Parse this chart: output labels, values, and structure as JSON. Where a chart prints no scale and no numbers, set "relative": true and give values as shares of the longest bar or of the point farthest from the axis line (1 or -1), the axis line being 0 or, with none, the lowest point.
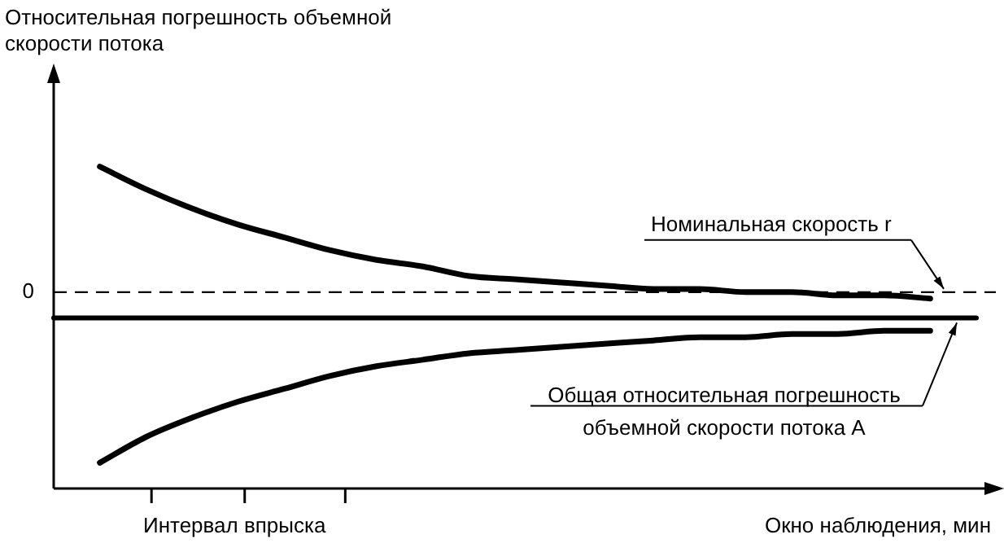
{
  "chart_data": {
    "type": "line",
    "relative": true,
    "xlabel": "Окно наблюдения, мин",
    "categories": [
      null,
      null,
      null,
      null,
      null,
      null,
      null,
      null,
      null,
      null,
      null,
      null,
      null,
      null,
      null,
      null,
      null,
      null,
      null,
      null,
      null
    ],
    "series": [
      {
        "color": "#000000",
        "values": [
          null,
          1,
          0.93,
          0.87,
          0.82,
          0.78,
          0.74,
          0.71,
          0.69,
          0.66,
          0.65,
          0.64,
          0.63,
          0.62,
          0.62,
          0.61,
          0.61,
          0.6,
          0.6,
          0.59,
          null
        ]
      },
      {
        "color": "#000000",
        "values": [
          null,
          0.08,
          0.16,
          0.22,
          0.27,
          0.31,
          0.35,
          0.38,
          0.4,
          0.42,
          0.43,
          0.44,
          0.45,
          0.46,
          0.47,
          0.47,
          0.48,
          0.48,
          0.49,
          0.49,
          null
        ]
      },
      {
        "name": "Общая относительная погрешность объемной скорости потока A",
        "color": "#000000",
        "values": [
          0.53,
          0.53,
          0.53,
          0.53,
          0.53,
          0.53,
          0.53,
          0.53,
          0.53,
          0.53,
          0.53,
          0.53,
          0.53,
          0.53,
          0.53,
          0.53,
          0.53,
          0.53,
          0.53,
          0.53,
          0.53
        ]
      }
    ],
    "ref_lines": [
      {
        "axis": "y",
        "value": 0.61,
        "label": "Номинальная скорость r",
        "line_style": "dashed",
        "color": "#000000"
      }
    ],
    "annotations": [
      "Относительная погрешность объемной скорости потока",
      "Интервал впрыска",
      "0"
    ],
    "legend": false,
    "marker": "none",
    "line_style": "solid"
  }
}
